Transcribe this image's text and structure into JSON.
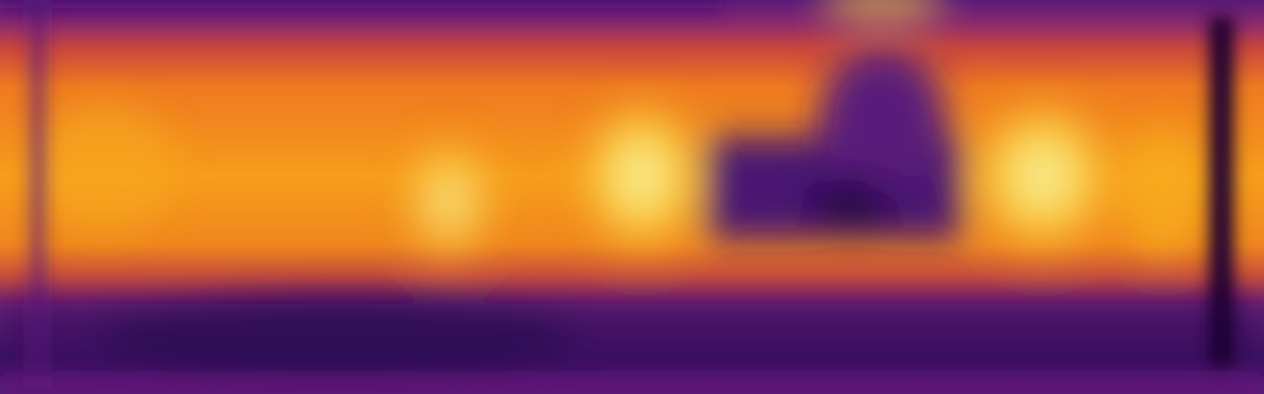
{
  "image": {
    "kind": "depth-heatmap",
    "colormap": "inferno",
    "palette": {
      "darkest": "#0a0012",
      "deep_purple": "#3b0a63",
      "purple": "#6a1a7e",
      "magenta": "#a3316f",
      "red_orange": "#d9503a",
      "orange": "#f38a1c",
      "yellow": "#f9c93c",
      "pale_yellow": "#f5f3a6"
    }
  }
}
